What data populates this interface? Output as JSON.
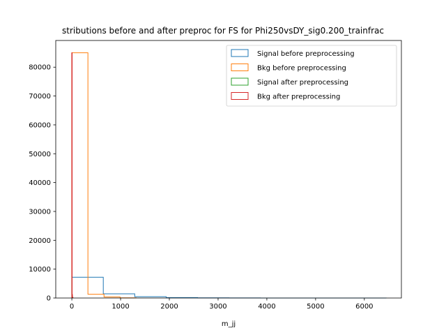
{
  "chart_data": {
    "type": "histogram",
    "title": "stributions before and after preproc for FS for Phi250vsDY_sig0.200_trainfrac",
    "xlabel": "m_jj",
    "ylabel": "",
    "xlim": [
      -330,
      6760
    ],
    "ylim": [
      0,
      89250
    ],
    "x_ticks": [
      0,
      1000,
      2000,
      3000,
      4000,
      5000,
      6000
    ],
    "y_ticks": [
      0,
      10000,
      20000,
      30000,
      40000,
      50000,
      60000,
      70000,
      80000
    ],
    "grid": false,
    "legend_position": "top-right",
    "series": [
      {
        "name": "Signal before preprocessing",
        "color": "#1f77b4",
        "bin_edges": [
          0,
          645,
          1290,
          1935,
          2580,
          3225,
          3870,
          4515,
          5160,
          5805,
          6450
        ],
        "counts": [
          7200,
          1450,
          450,
          150,
          50,
          20,
          10,
          5,
          3,
          2
        ]
      },
      {
        "name": "Bkg before preprocessing",
        "color": "#ff7f0e",
        "bin_edges": [
          0,
          330,
          660,
          990,
          1320
        ],
        "counts": [
          85000,
          1300,
          350,
          50
        ]
      },
      {
        "name": "Signal after preprocessing",
        "color": "#2ca02c",
        "bin_edges": [
          0,
          6,
          12,
          18,
          24
        ],
        "counts": [
          7600,
          900,
          200,
          50
        ]
      },
      {
        "name": "Bkg after preprocessing",
        "color": "#d62728",
        "bin_edges": [
          0,
          6,
          12,
          18,
          24
        ],
        "counts": [
          85000,
          1200,
          300,
          50
        ]
      }
    ]
  }
}
